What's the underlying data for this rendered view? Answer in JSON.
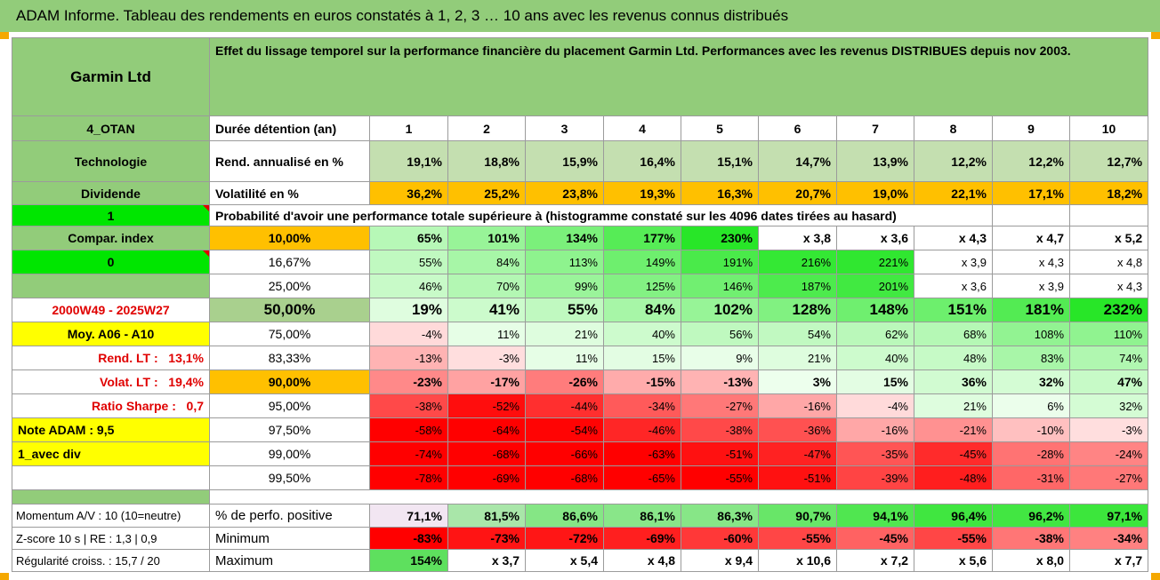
{
  "title": "ADAM Informe. Tableau des rendements en euros constatés à 1, 2, 3 … 10 ans avec les revenus connus distribués",
  "colors": {
    "title_bar": "#92cc7a",
    "header_green": "#92cc7a",
    "light_green_row": "#c4dfb0",
    "orange": "#ffc000",
    "bright_green": "#00e600",
    "yellow": "#ffff00",
    "red_text": "#e00000"
  },
  "header": {
    "company": "Garmin Ltd",
    "description": "Effet du lissage temporel sur la performance financière du placement Garmin Ltd. Performances avec les revenus DISTRIBUES depuis nov 2003."
  },
  "rows_top": [
    {
      "left": "4_OTAN",
      "label": "Durée détention (an)",
      "values": [
        "1",
        "2",
        "3",
        "4",
        "5",
        "6",
        "7",
        "8",
        "9",
        "10"
      ]
    },
    {
      "left": "Technologie",
      "label": "Rend. annualisé en %",
      "values": [
        "19,1%",
        "18,8%",
        "15,9%",
        "16,4%",
        "15,1%",
        "14,7%",
        "13,9%",
        "12,2%",
        "12,2%",
        "12,7%"
      ]
    },
    {
      "left": "Dividende",
      "label": "Volatilité en %",
      "values": [
        "36,2%",
        "25,2%",
        "23,8%",
        "19,3%",
        "16,3%",
        "20,7%",
        "19,0%",
        "22,1%",
        "17,1%",
        "18,2%"
      ]
    }
  ],
  "prob_row": {
    "left": "1",
    "text": "Probabilité d'avoir une performance totale supérieure à (histogramme constaté sur les 4096 dates tirées au hasard)"
  },
  "left_panel": {
    "compar_index": "Compar. index",
    "zero": "0",
    "blank": "",
    "period": "2000W49 - 2025W27",
    "moy": "Moy. A06 - A10",
    "rend_lt_label": "Rend. LT :",
    "rend_lt_value": "13,1%",
    "volat_lt_label": "Volat. LT :",
    "volat_lt_value": "19,4%",
    "sharpe_label": "Ratio Sharpe :",
    "sharpe_value": "0,7",
    "note_adam": "Note ADAM : 9,5",
    "avec_div": "1_avec div"
  },
  "percentile_rows": [
    {
      "pct": "10,00%",
      "values": [
        "65%",
        "101%",
        "134%",
        "177%",
        "230%",
        "x 3,8",
        "x 3,6",
        "x 4,3",
        "x 4,7",
        "x 5,2"
      ]
    },
    {
      "pct": "16,67%",
      "values": [
        "55%",
        "84%",
        "113%",
        "149%",
        "191%",
        "216%",
        "221%",
        "x 3,9",
        "x 4,3",
        "x 4,8"
      ]
    },
    {
      "pct": "25,00%",
      "values": [
        "46%",
        "70%",
        "99%",
        "125%",
        "146%",
        "187%",
        "201%",
        "x 3,6",
        "x 3,9",
        "x 4,3"
      ]
    },
    {
      "pct": "50,00%",
      "values": [
        "19%",
        "41%",
        "55%",
        "84%",
        "102%",
        "128%",
        "148%",
        "151%",
        "181%",
        "232%"
      ]
    },
    {
      "pct": "75,00%",
      "values": [
        "-4%",
        "11%",
        "21%",
        "40%",
        "56%",
        "54%",
        "62%",
        "68%",
        "108%",
        "110%"
      ]
    },
    {
      "pct": "83,33%",
      "values": [
        "-13%",
        "-3%",
        "11%",
        "15%",
        "9%",
        "21%",
        "40%",
        "48%",
        "83%",
        "74%"
      ]
    },
    {
      "pct": "90,00%",
      "values": [
        "-23%",
        "-17%",
        "-26%",
        "-15%",
        "-13%",
        "3%",
        "15%",
        "36%",
        "32%",
        "47%"
      ]
    },
    {
      "pct": "95,00%",
      "values": [
        "-38%",
        "-52%",
        "-44%",
        "-34%",
        "-27%",
        "-16%",
        "-4%",
        "21%",
        "6%",
        "32%"
      ]
    },
    {
      "pct": "97,50%",
      "values": [
        "-58%",
        "-64%",
        "-54%",
        "-46%",
        "-38%",
        "-36%",
        "-16%",
        "-21%",
        "-10%",
        "-3%"
      ]
    },
    {
      "pct": "99,00%",
      "values": [
        "-74%",
        "-68%",
        "-66%",
        "-63%",
        "-51%",
        "-47%",
        "-35%",
        "-45%",
        "-28%",
        "-24%"
      ]
    },
    {
      "pct": "99,50%",
      "values": [
        "-78%",
        "-69%",
        "-68%",
        "-65%",
        "-55%",
        "-51%",
        "-39%",
        "-48%",
        "-31%",
        "-27%"
      ]
    }
  ],
  "bottom_rows": [
    {
      "left": "Momentum A/V : 10 (10=neutre)",
      "label": "% de perfo. positive",
      "values": [
        "71,1%",
        "81,5%",
        "86,6%",
        "86,1%",
        "86,3%",
        "90,7%",
        "94,1%",
        "96,4%",
        "96,2%",
        "97,1%"
      ]
    },
    {
      "left": "Z-score 10 s | RE : 1,3 | 0,9",
      "label": "Minimum",
      "values": [
        "-83%",
        "-73%",
        "-72%",
        "-69%",
        "-60%",
        "-55%",
        "-45%",
        "-55%",
        "-38%",
        "-34%"
      ]
    },
    {
      "left": "Régularité croiss. : 15,7 / 20",
      "label": "Maximum",
      "values": [
        "154%",
        "x 3,7",
        "x 5,4",
        "x 4,8",
        "x 9,4",
        "x 10,6",
        "x 7,2",
        "x 5,6",
        "x 8,0",
        "x 7,7"
      ]
    }
  ]
}
